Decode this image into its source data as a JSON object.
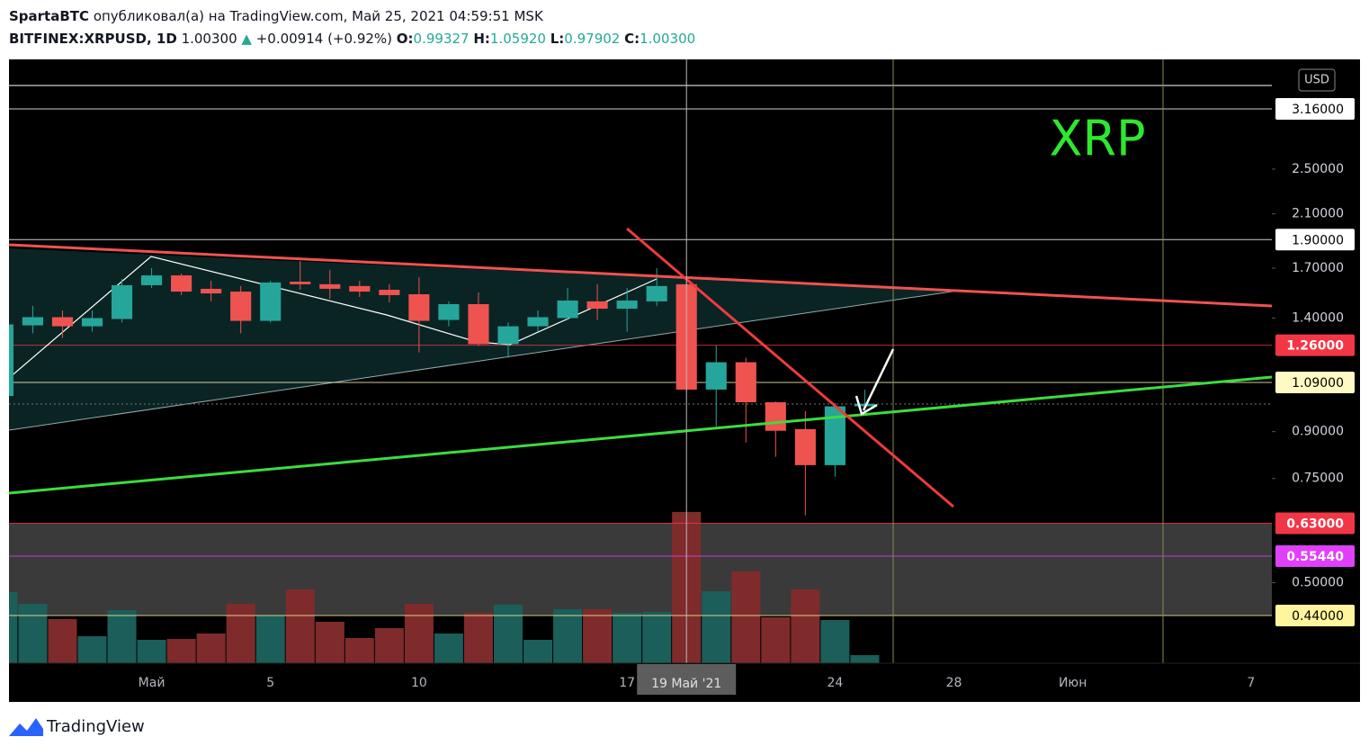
{
  "header": {
    "author": "SpartaBTC",
    "published": "опубликовал(а) на TradingView.com, Май 25, 2021 04:59:51 MSK",
    "symbol": "BITFINEX:XRPUSD, 1D",
    "last": "1.00300",
    "change_arrow": "▲",
    "change": "+0.00914 (+0.92%)",
    "ohlc": [
      {
        "label": "O:",
        "value": "0.99327"
      },
      {
        "label": "H:",
        "value": "1.05920"
      },
      {
        "label": "L:",
        "value": "0.97902"
      },
      {
        "label": "C:",
        "value": "1.00300"
      }
    ]
  },
  "footer": {
    "brand": "TradingView"
  },
  "chart_data": {
    "type": "candlestick",
    "title": "XRP",
    "currency": "USD",
    "log_scale": true,
    "up_color": "#26a69a",
    "down_color": "#ef5350",
    "volume_up_color": "#1b5e5a",
    "volume_down_color": "#7f2b2b",
    "x": [
      -4,
      -3,
      -2,
      -1,
      0,
      1,
      2,
      3,
      4,
      5,
      6,
      7,
      8,
      9,
      10,
      11,
      12,
      13,
      14,
      15,
      16,
      17,
      18,
      19,
      20,
      21,
      22,
      23,
      24,
      25
    ],
    "open": [
      1.034,
      1.361,
      1.405,
      1.356,
      1.395,
      1.591,
      1.653,
      1.569,
      1.552,
      1.385,
      1.613,
      1.597,
      1.586,
      1.563,
      1.536,
      1.39,
      1.478,
      1.265,
      1.356,
      1.4,
      1.494,
      1.452,
      1.494,
      1.597,
      1.06,
      1.179,
      1.009,
      0.909,
      0.79,
      0.99327
    ],
    "high": [
      1.39,
      1.468,
      1.442,
      1.442,
      1.63,
      1.7,
      1.665,
      1.619,
      1.586,
      1.619,
      1.748,
      1.688,
      1.619,
      1.597,
      1.641,
      1.494,
      1.547,
      1.376,
      1.442,
      1.574,
      1.597,
      1.574,
      1.7,
      1.613,
      1.26,
      1.2,
      1.012,
      0.975,
      1.006,
      1.0592
    ],
    "low": [
      1.016,
      1.319,
      1.296,
      1.328,
      1.376,
      1.574,
      1.531,
      1.494,
      1.319,
      1.376,
      1.563,
      1.509,
      1.52,
      1.488,
      1.225,
      1.356,
      1.256,
      1.2,
      1.328,
      1.39,
      1.39,
      1.328,
      1.468,
      1.05,
      0.919,
      0.863,
      0.816,
      0.65,
      0.755,
      0.97902
    ],
    "close": [
      1.366,
      1.405,
      1.356,
      1.4,
      1.591,
      1.653,
      1.552,
      1.541,
      1.385,
      1.608,
      1.597,
      1.569,
      1.552,
      1.531,
      1.385,
      1.478,
      1.265,
      1.356,
      1.405,
      1.499,
      1.452,
      1.499,
      1.586,
      1.06,
      1.179,
      1.009,
      0.903,
      0.79,
      0.993,
      1.003
    ],
    "volume": [
      79,
      66,
      49,
      30,
      59,
      26,
      27,
      33,
      66,
      53,
      82,
      46,
      28,
      39,
      66,
      33,
      56,
      65,
      26,
      60,
      60,
      56,
      57,
      168,
      80,
      102,
      51,
      82,
      48,
      9
    ],
    "xlim": [
      -3.8,
      38.7
    ],
    "xticks": [
      {
        "value": 1,
        "label": "Май"
      },
      5,
      10,
      17,
      24,
      28,
      {
        "value": 32,
        "label": "Июн"
      },
      {
        "value": 38,
        "label": "7"
      }
    ],
    "crosshair": {
      "value": 19,
      "label": "19 Май '21"
    },
    "ylim": [
      0.3655,
      3.831
    ],
    "yticks": [
      {
        "value": 2.5,
        "label": "2.50000"
      },
      {
        "value": 2.1,
        "label": "2.10000"
      },
      {
        "value": 1.7,
        "label": "1.70000"
      },
      {
        "value": 1.4,
        "label": "1.40000"
      },
      {
        "value": 0.9,
        "label": "0.90000"
      },
      {
        "value": 0.75,
        "label": "0.75000"
      },
      {
        "value": 0.5,
        "label": "0.50000"
      }
    ],
    "levels": [
      {
        "value": 3.16,
        "label": "3.16000",
        "color": "#ffffff",
        "text_color": "#000000"
      },
      {
        "value": 1.9,
        "label": "1.90000",
        "color": "#ffffff",
        "text_color": "#000000"
      },
      {
        "value": 1.26,
        "label": "1.26000",
        "color": "#f23645",
        "text_color": "#ffffff"
      },
      {
        "value": 1.09,
        "label": "1.09000",
        "color": "#fff9c4",
        "text_color": "#000000"
      },
      {
        "value": 0.63,
        "label": "0.63000",
        "color": "#f23645",
        "text_color": "#ffffff"
      },
      {
        "value": 0.5544,
        "label": "0.55440",
        "color": "#e040fb",
        "text_color": "#ffffff"
      },
      {
        "value": 0.44,
        "label": "0.44000",
        "color": "#fff59d",
        "text_color": "#000000"
      }
    ]
  }
}
